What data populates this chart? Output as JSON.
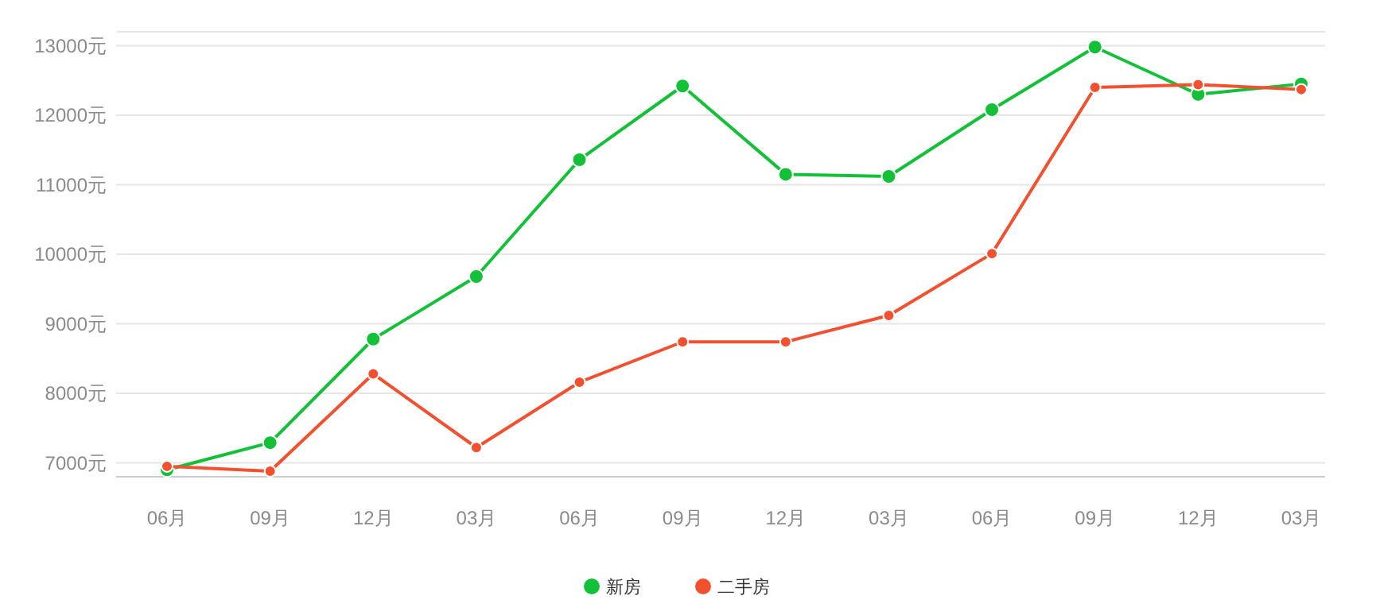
{
  "chart_data": {
    "type": "line",
    "categories": [
      "06月",
      "09月",
      "12月",
      "03月",
      "06月",
      "09月",
      "12月",
      "03月",
      "06月",
      "09月",
      "12月",
      "03月"
    ],
    "series": [
      {
        "name": "新房",
        "color": "#13c139",
        "values": [
          6900,
          7290,
          8780,
          9680,
          11360,
          12420,
          11150,
          11120,
          12080,
          12980,
          12300,
          12450
        ]
      },
      {
        "name": "二手房",
        "color": "#f2502f",
        "values": [
          6950,
          6880,
          8280,
          7220,
          8160,
          8740,
          8740,
          9120,
          10010,
          12400,
          12440,
          12370
        ]
      }
    ],
    "ylim": [
      6800,
      13200
    ],
    "yticks": [
      {
        "value": 7000,
        "label": "7000元"
      },
      {
        "value": 8000,
        "label": "8000元"
      },
      {
        "value": 9000,
        "label": "9000元"
      },
      {
        "value": 10000,
        "label": "10000元"
      },
      {
        "value": 11000,
        "label": "11000元"
      },
      {
        "value": 12000,
        "label": "12000元"
      },
      {
        "value": 13000,
        "label": "13000元"
      }
    ],
    "grid": "y",
    "legend": "bottom",
    "marker": "circle",
    "line_style": "solid"
  }
}
